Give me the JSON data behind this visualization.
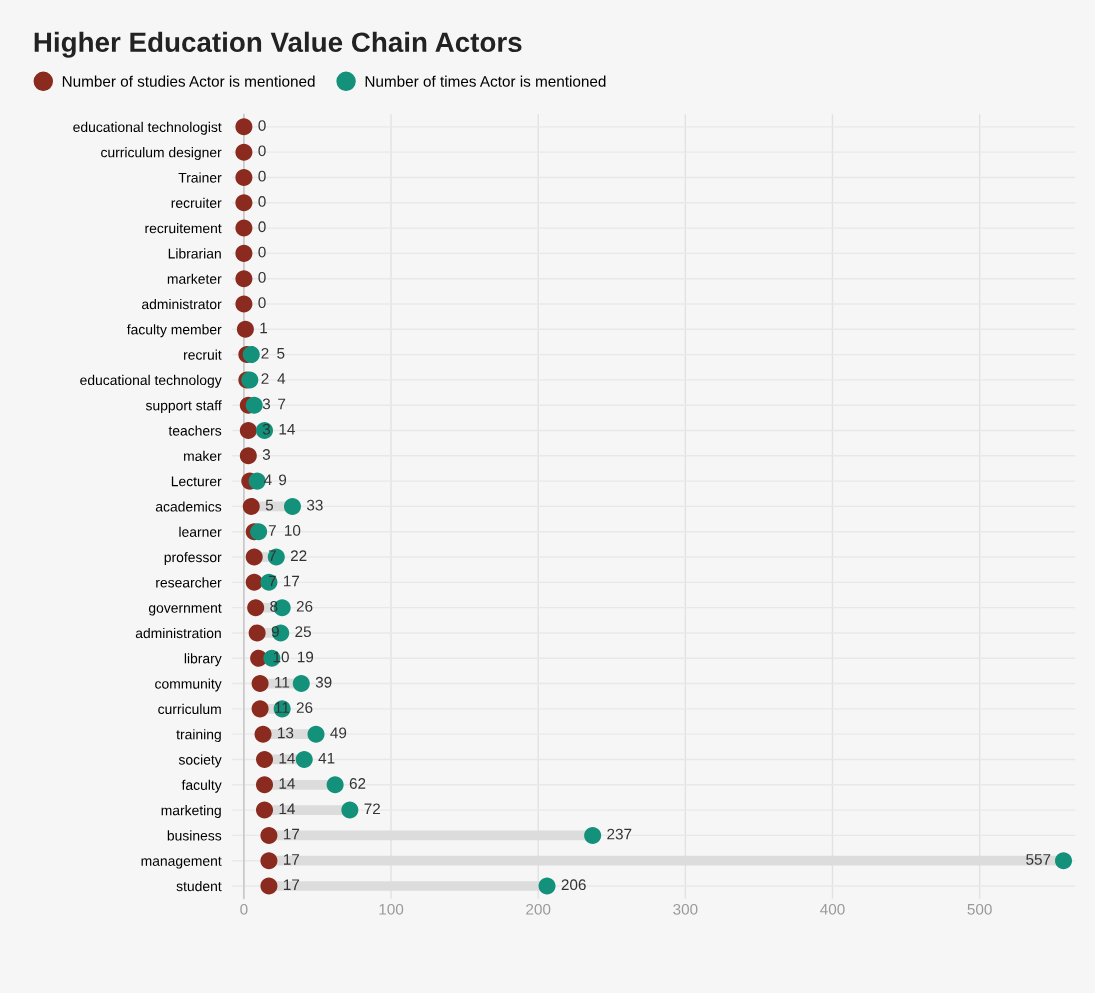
{
  "chart_data": {
    "type": "scatter",
    "orientation": "horizontal",
    "title": "Higher Education Value Chain Actors",
    "categories": [
      "educational technologist",
      "curriculum designer",
      "Trainer",
      "recruiter",
      "recruitement",
      "Librarian",
      "marketer",
      "administrator",
      "faculty member",
      "recruit",
      "educational technology",
      "support staff",
      "teachers",
      "maker",
      "Lecturer",
      "academics",
      "learner",
      "professor",
      "researcher",
      "government",
      "administration",
      "library",
      "community",
      "curriculum",
      "training",
      "society",
      "faculty",
      "marketing",
      "business",
      "management",
      "student"
    ],
    "series": [
      {
        "name": "Number of studies Actor is mentioned",
        "color": "#8b2a1e",
        "values": [
          0,
          0,
          0,
          0,
          0,
          0,
          0,
          0,
          1,
          2,
          2,
          3,
          3,
          3,
          4,
          5,
          7,
          7,
          7,
          8,
          9,
          10,
          11,
          11,
          13,
          14,
          14,
          14,
          17,
          17,
          17
        ]
      },
      {
        "name": "Number of times Actor is mentioned",
        "color": "#14917a",
        "values": [
          null,
          null,
          null,
          null,
          null,
          null,
          null,
          null,
          null,
          5,
          4,
          7,
          14,
          null,
          9,
          33,
          10,
          22,
          17,
          26,
          25,
          19,
          39,
          26,
          49,
          41,
          62,
          72,
          237,
          557,
          206
        ]
      }
    ],
    "xlim": [
      -8,
      565
    ],
    "xticks": [
      0,
      100,
      200,
      300,
      400,
      500
    ],
    "grid": true,
    "legend": "top left",
    "marker": "circle",
    "data_labels": true
  }
}
